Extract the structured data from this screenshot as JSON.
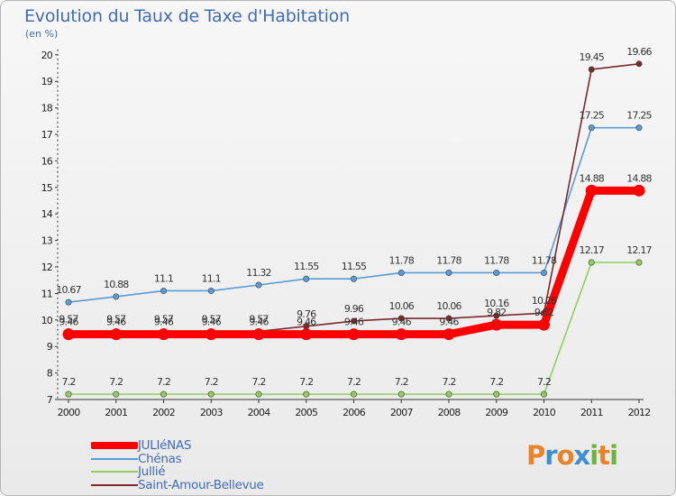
{
  "header": {
    "title": "Evolution du Taux de Taxe d'Habitation",
    "subtitle": "(en %)"
  },
  "logo": {
    "letters": [
      "P",
      "r",
      "o",
      "x",
      "i",
      "t",
      "i"
    ],
    "colors": [
      "#e8832a",
      "#3f8fd0",
      "#e8832a",
      "#3f8fd0",
      "#6cb33f",
      "#e8832a",
      "#6cb33f"
    ]
  },
  "chart_data": {
    "type": "line",
    "title": "Evolution du Taux de Taxe d'Habitation",
    "ylabel": "(en %)",
    "xlabel": "",
    "x": [
      "2000",
      "2001",
      "2002",
      "2003",
      "2004",
      "2005",
      "2006",
      "2007",
      "2008",
      "2009",
      "2010",
      "2011",
      "2012"
    ],
    "ylim": [
      7,
      20
    ],
    "yticks": [
      "7",
      "8",
      "9",
      "10",
      "11",
      "12",
      "13",
      "14",
      "15",
      "16",
      "17",
      "18",
      "19",
      "20"
    ],
    "grid": false,
    "legend_position": "bottom-left",
    "series": [
      {
        "name": "JULIéNAS",
        "color": "#ff0000",
        "values": [
          9.46,
          9.46,
          9.46,
          9.46,
          9.46,
          9.46,
          9.46,
          9.46,
          9.46,
          9.82,
          9.82,
          14.88,
          14.88
        ],
        "labels": [
          "9.46",
          "9.46",
          "9.46",
          "9.46",
          "9.46",
          "9.46",
          "9.46",
          "9.46",
          "9.46",
          "9.82",
          "9.82",
          "14.88",
          "14.88"
        ]
      },
      {
        "name": "Chénas",
        "color": "#5a9bd5",
        "values": [
          10.67,
          10.88,
          11.1,
          11.1,
          11.32,
          11.55,
          11.55,
          11.78,
          11.78,
          11.78,
          11.78,
          17.25,
          17.25
        ],
        "labels": [
          "10.67",
          "10.88",
          "11.1",
          "11.1",
          "11.32",
          "11.55",
          "11.55",
          "11.78",
          "11.78",
          "11.78",
          "11.78",
          "17.25",
          "17.25"
        ]
      },
      {
        "name": "Jullié",
        "color": "#8ed05a",
        "values": [
          7.2,
          7.2,
          7.2,
          7.2,
          7.2,
          7.2,
          7.2,
          7.2,
          7.2,
          7.2,
          7.2,
          12.17,
          12.17
        ],
        "labels": [
          "7.2",
          "7.2",
          "7.2",
          "7.2",
          "7.2",
          "7.2",
          "7.2",
          "7.2",
          "7.2",
          "7.2",
          "7.2",
          "12.17",
          "12.17"
        ]
      },
      {
        "name": "Saint-Amour-Bellevue",
        "color": "#7a2a2e",
        "values": [
          9.57,
          9.57,
          9.57,
          9.57,
          9.57,
          9.76,
          9.96,
          10.06,
          10.06,
          10.16,
          10.26,
          19.45,
          19.66
        ],
        "labels": [
          "9.57",
          "9.57",
          "9.57",
          "9.57",
          "9.57",
          "9.76",
          "9.96",
          "10.06",
          "10.06",
          "10.16",
          "10.26",
          "19.45",
          "19.66"
        ]
      }
    ]
  }
}
